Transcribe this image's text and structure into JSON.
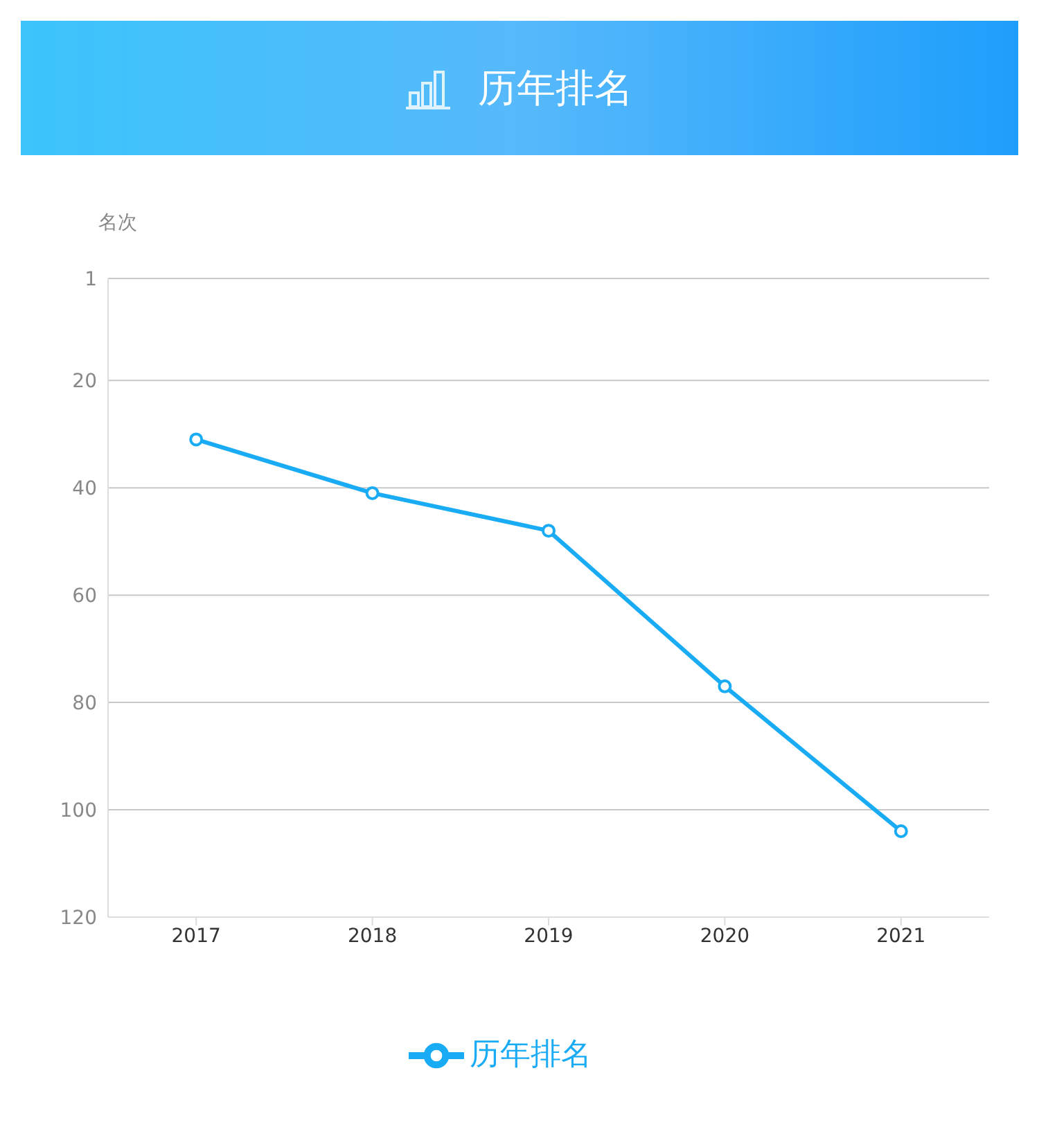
{
  "chart_data": {
    "type": "line",
    "title": "历年排名",
    "ylabel": "名次",
    "categories": [
      "2017",
      "2018",
      "2019",
      "2020",
      "2021"
    ],
    "series": [
      {
        "name": "历年排名",
        "color": "#1aabf5",
        "values": [
          31,
          41,
          48,
          77,
          104
        ]
      }
    ],
    "ylim": [
      120,
      1
    ],
    "yticks": [
      1,
      20,
      40,
      60,
      80,
      100,
      120
    ],
    "grid": "y",
    "legend": "bottom",
    "marker": "circle"
  }
}
